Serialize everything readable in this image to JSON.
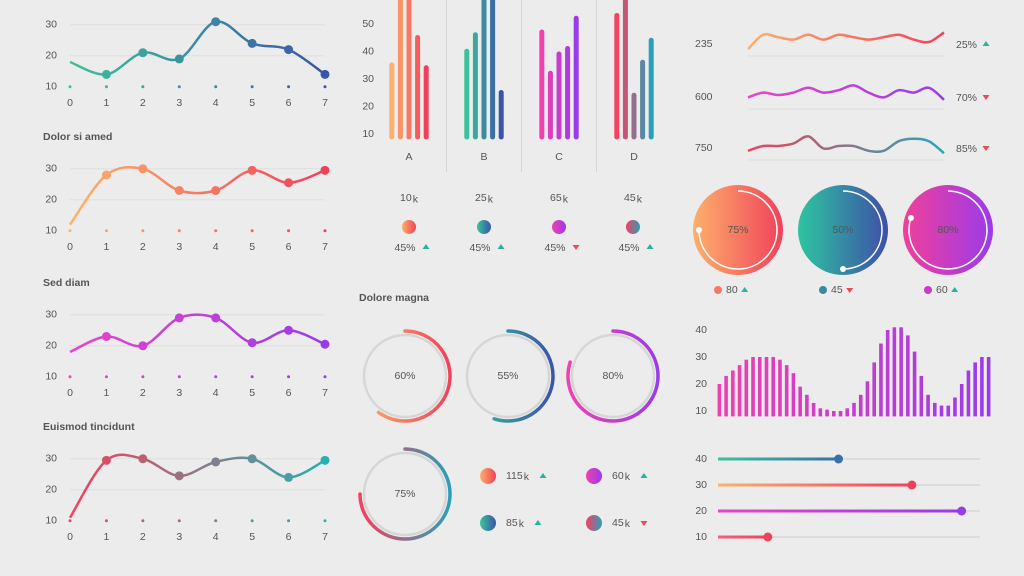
{
  "chart_data": [
    {
      "type": "line",
      "x": [
        0,
        1,
        2,
        3,
        4,
        5,
        6,
        7
      ],
      "values": [
        18,
        14,
        21,
        19,
        31,
        24,
        22,
        14
      ],
      "colors": [
        "#3cc29a",
        "#3a55a8"
      ],
      "xlim": [
        0,
        7
      ],
      "xticks": [
        0,
        1,
        2,
        3,
        4,
        5,
        6,
        7
      ],
      "ylim": [
        8,
        33
      ],
      "yticks": [
        10,
        20,
        30
      ]
    },
    {
      "type": "line",
      "title": "Dolor si amed",
      "x": [
        0,
        1,
        2,
        3,
        4,
        5,
        6,
        7
      ],
      "values": [
        12,
        28,
        30,
        23,
        23,
        29.5,
        25.5,
        29.5
      ],
      "colors": [
        "#fdb36b",
        "#f0415a"
      ],
      "xlim": [
        0,
        7
      ],
      "xticks": [
        0,
        1,
        2,
        3,
        4,
        5,
        6,
        7
      ],
      "ylim": [
        8,
        33
      ],
      "yticks": [
        10,
        20,
        30
      ]
    },
    {
      "type": "line",
      "title": "Sed diam",
      "x": [
        0,
        1,
        2,
        3,
        4,
        5,
        6,
        7
      ],
      "values": [
        18,
        23,
        20,
        29,
        29,
        21,
        25,
        20.5
      ],
      "colors": [
        "#e845c8",
        "#9a3bea"
      ],
      "xlim": [
        0,
        7
      ],
      "xticks": [
        0,
        1,
        2,
        3,
        4,
        5,
        6,
        7
      ],
      "ylim": [
        8,
        33
      ],
      "yticks": [
        10,
        20,
        30
      ]
    },
    {
      "type": "line",
      "title": "Euismod tincidunt",
      "x": [
        0,
        1,
        2,
        3,
        4,
        5,
        6,
        7
      ],
      "values": [
        11,
        29.5,
        30,
        24.5,
        29,
        30,
        24,
        29.5
      ],
      "colors": [
        "#f5405e",
        "#26b0b0"
      ],
      "xlim": [
        0,
        7
      ],
      "xticks": [
        0,
        1,
        2,
        3,
        4,
        5,
        6,
        7
      ],
      "ylim": [
        8,
        33
      ],
      "yticks": [
        10,
        20,
        30
      ]
    },
    {
      "type": "bar",
      "categories": [
        "A",
        "B",
        "C",
        "D"
      ],
      "values": [
        [
          36,
          62,
          62,
          46,
          35
        ],
        [
          41,
          47,
          62,
          62,
          26
        ],
        [
          48,
          33,
          40,
          42,
          53
        ],
        [
          54,
          62,
          25,
          37,
          45
        ]
      ],
      "colors": [
        [
          "#fdb06b",
          "#f0415a"
        ],
        [
          "#3cc29a",
          "#3a55a8"
        ],
        [
          "#f040b0",
          "#9a3bea"
        ],
        [
          "#f5405e",
          "#2aa0b8"
        ]
      ],
      "ylim": [
        8,
        60
      ],
      "yticks": [
        10,
        20,
        30,
        40,
        50
      ]
    },
    {
      "type": "stats",
      "items": [
        {
          "value": 10,
          "unit": "k",
          "change": "45%",
          "trend": "up",
          "colors": [
            "#fdb06b",
            "#f0415a"
          ]
        },
        {
          "value": 25,
          "unit": "k",
          "change": "45%",
          "trend": "up",
          "colors": [
            "#3cc29a",
            "#3a55a8"
          ]
        },
        {
          "value": 65,
          "unit": "k",
          "change": "45%",
          "trend": "down",
          "colors": [
            "#f040b0",
            "#9a3bea"
          ]
        },
        {
          "value": 45,
          "unit": "k",
          "change": "45%",
          "trend": "up",
          "colors": [
            "#f5405e",
            "#2aa0b8"
          ]
        }
      ]
    },
    {
      "type": "sparkline",
      "ylim": [
        0,
        10
      ],
      "rows": [
        {
          "label": 235,
          "values": [
            2,
            8,
            7,
            6,
            8,
            6,
            8,
            7,
            6,
            7,
            8,
            6,
            5,
            9
          ],
          "colors": [
            "#fdb06b",
            "#f0415a"
          ],
          "change": "25%",
          "trend": "up"
        },
        {
          "label": 600,
          "values": [
            4,
            6,
            5,
            6,
            8,
            6,
            7,
            9,
            6,
            4,
            7,
            6,
            8,
            3
          ],
          "colors": [
            "#e845c8",
            "#9a3bea"
          ],
          "change": "70%",
          "trend": "down"
        },
        {
          "label": 750,
          "values": [
            3,
            5,
            5,
            6,
            9,
            4,
            5,
            5,
            3,
            3,
            7,
            8,
            7,
            2
          ],
          "colors": [
            "#f0415a",
            "#26a8b8"
          ],
          "change": "85%",
          "trend": "down"
        }
      ]
    },
    {
      "type": "gauge",
      "values": [
        75,
        50,
        80
      ],
      "value_labels": [
        "75%",
        "50%",
        "80%"
      ],
      "counts": [
        80,
        45,
        60
      ],
      "trends": [
        "up",
        "down",
        "up"
      ],
      "colors": [
        [
          "#fdb06b",
          "#f0415a"
        ],
        [
          "#2dc5a0",
          "#3f4fa8"
        ],
        [
          "#f0409a",
          "#9b3bea"
        ]
      ]
    },
    {
      "type": "ring",
      "title": "Dolore magna",
      "values": [
        60,
        55,
        80,
        75
      ],
      "value_labels": [
        "60%",
        "55%",
        "80%",
        "75%"
      ],
      "colors": [
        [
          "#fdb06b",
          "#f0415a"
        ],
        [
          "#3cc29a",
          "#3a55a8"
        ],
        [
          "#f040b0",
          "#9a3bea"
        ],
        [
          "#f5405e",
          "#2aa0b8"
        ]
      ]
    },
    {
      "type": "stats",
      "items": [
        {
          "value": 115,
          "unit": "k",
          "trend": "up",
          "colors": [
            "#fdb06b",
            "#f0415a"
          ]
        },
        {
          "value": 60,
          "unit": "k",
          "trend": "up",
          "colors": [
            "#f040b0",
            "#9a3bea"
          ]
        },
        {
          "value": 85,
          "unit": "k",
          "trend": "up",
          "colors": [
            "#3cc29a",
            "#3a55a8"
          ]
        },
        {
          "value": 45,
          "unit": "k",
          "trend": "down",
          "colors": [
            "#f5405e",
            "#2aa0b8"
          ]
        }
      ]
    },
    {
      "type": "bar",
      "values": [
        20,
        23,
        25,
        27,
        29,
        30,
        30,
        30,
        30,
        29,
        27,
        24,
        19,
        16,
        13,
        11,
        10.5,
        10,
        10,
        11,
        13,
        16,
        21,
        28,
        35,
        40,
        41,
        41,
        38,
        32,
        23,
        16,
        13,
        12,
        12,
        15,
        20,
        25,
        28,
        30,
        30
      ],
      "colors": [
        "#f040b0",
        "#9a3bea"
      ],
      "ylim": [
        8,
        42
      ],
      "yticks": [
        10,
        20,
        30,
        40
      ]
    },
    {
      "type": "slider",
      "categories": [
        40,
        30,
        20,
        10
      ],
      "values": [
        46,
        74,
        93,
        19
      ],
      "xlim": [
        0,
        100
      ],
      "colors": [
        [
          "#3cc29a",
          "#3a70a8"
        ],
        [
          "#fdb06b",
          "#f0415a"
        ],
        [
          "#e845c8",
          "#9a3bea"
        ],
        [
          "#f5607a",
          "#f0415a"
        ]
      ]
    }
  ]
}
